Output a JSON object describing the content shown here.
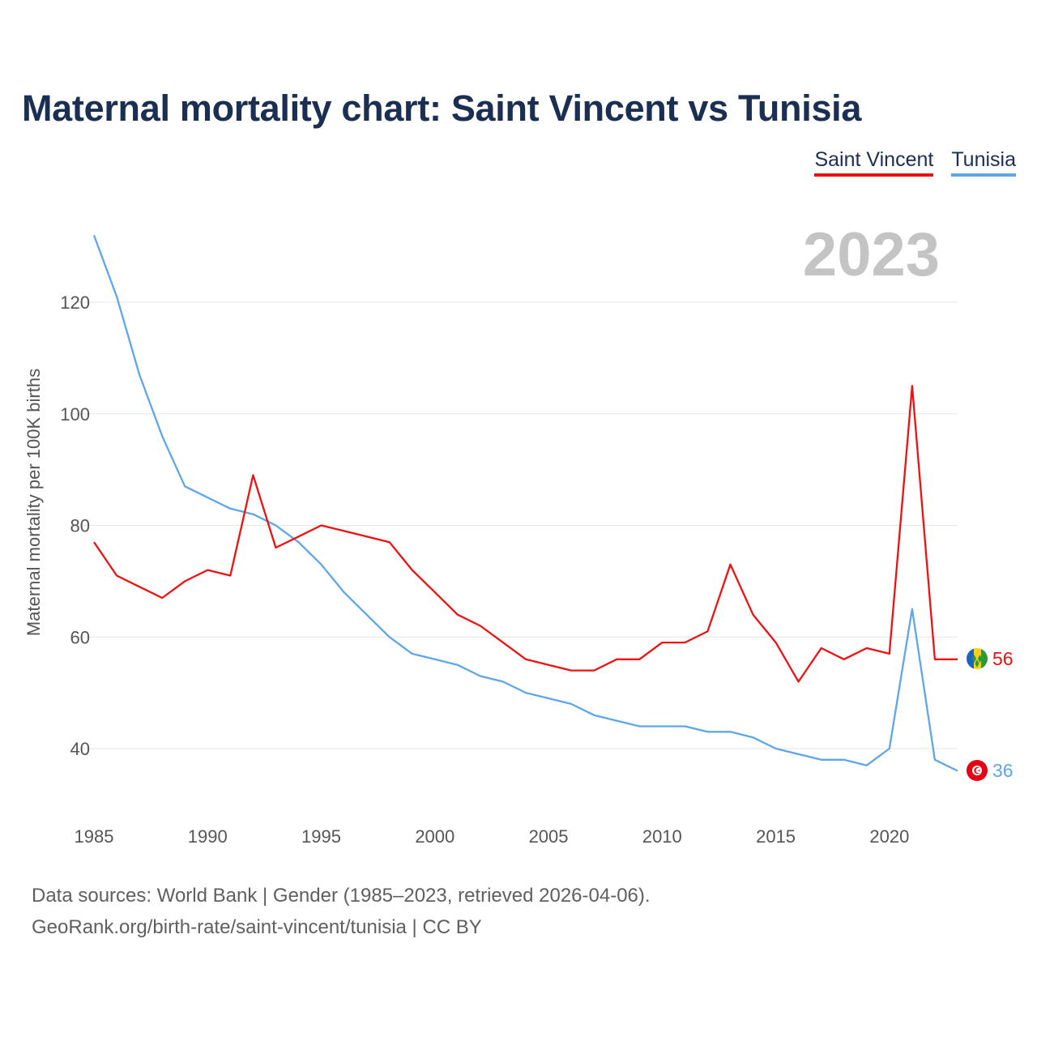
{
  "title": "Maternal mortality chart: Saint Vincent vs Tunisia",
  "legend": [
    {
      "label": "Saint Vincent",
      "color": "#ee1111"
    },
    {
      "label": "Tunisia",
      "color": "#5ea6e8"
    }
  ],
  "footer": {
    "source": "Data sources: World Bank | Gender (1985–2023, retrieved 2026-04-06).",
    "link": "GeoRank.org/birth-rate/saint-vincent/tunisia | CC BY"
  },
  "chart_data": {
    "type": "line",
    "title": "Maternal mortality chart: Saint Vincent vs Tunisia",
    "xlabel": "",
    "ylabel": "Maternal mortality per 100K births",
    "year_label": "2023",
    "x": [
      1985,
      1986,
      1987,
      1988,
      1989,
      1990,
      1991,
      1992,
      1993,
      1994,
      1995,
      1996,
      1997,
      1998,
      1999,
      2000,
      2001,
      2002,
      2003,
      2004,
      2005,
      2006,
      2007,
      2008,
      2009,
      2010,
      2011,
      2012,
      2013,
      2014,
      2015,
      2016,
      2017,
      2018,
      2019,
      2020,
      2021,
      2022,
      2023
    ],
    "xlim": [
      1985,
      2023
    ],
    "ylim": [
      27.6,
      132
    ],
    "x_ticks": [
      1985,
      1990,
      1995,
      2000,
      2005,
      2010,
      2015,
      2020
    ],
    "y_ticks": [
      40,
      60,
      80,
      100,
      120
    ],
    "grid": true,
    "legend_position": "top-right",
    "series": [
      {
        "name": "Saint Vincent",
        "color": "#ee1111",
        "end_label": "56",
        "flag": "saint-vincent-flag-icon",
        "values": [
          77,
          71,
          69,
          67,
          70,
          72,
          71,
          89,
          76,
          78,
          80,
          79,
          78,
          77,
          72,
          68,
          64,
          62,
          59,
          56,
          55,
          54,
          54,
          56,
          56,
          59,
          59,
          61,
          73,
          64,
          59,
          52,
          58,
          56,
          58,
          57,
          105,
          56,
          56
        ]
      },
      {
        "name": "Tunisia",
        "color": "#5ea6e8",
        "end_label": "36",
        "flag": "tunisia-flag-icon",
        "values": [
          132,
          121,
          107,
          96,
          87,
          85,
          83,
          82,
          80,
          77,
          73,
          68,
          64,
          60,
          57,
          56,
          55,
          53,
          52,
          50,
          49,
          48,
          46,
          45,
          44,
          44,
          44,
          43,
          43,
          42,
          40,
          39,
          38,
          38,
          37,
          40,
          65,
          38,
          36
        ]
      }
    ]
  }
}
